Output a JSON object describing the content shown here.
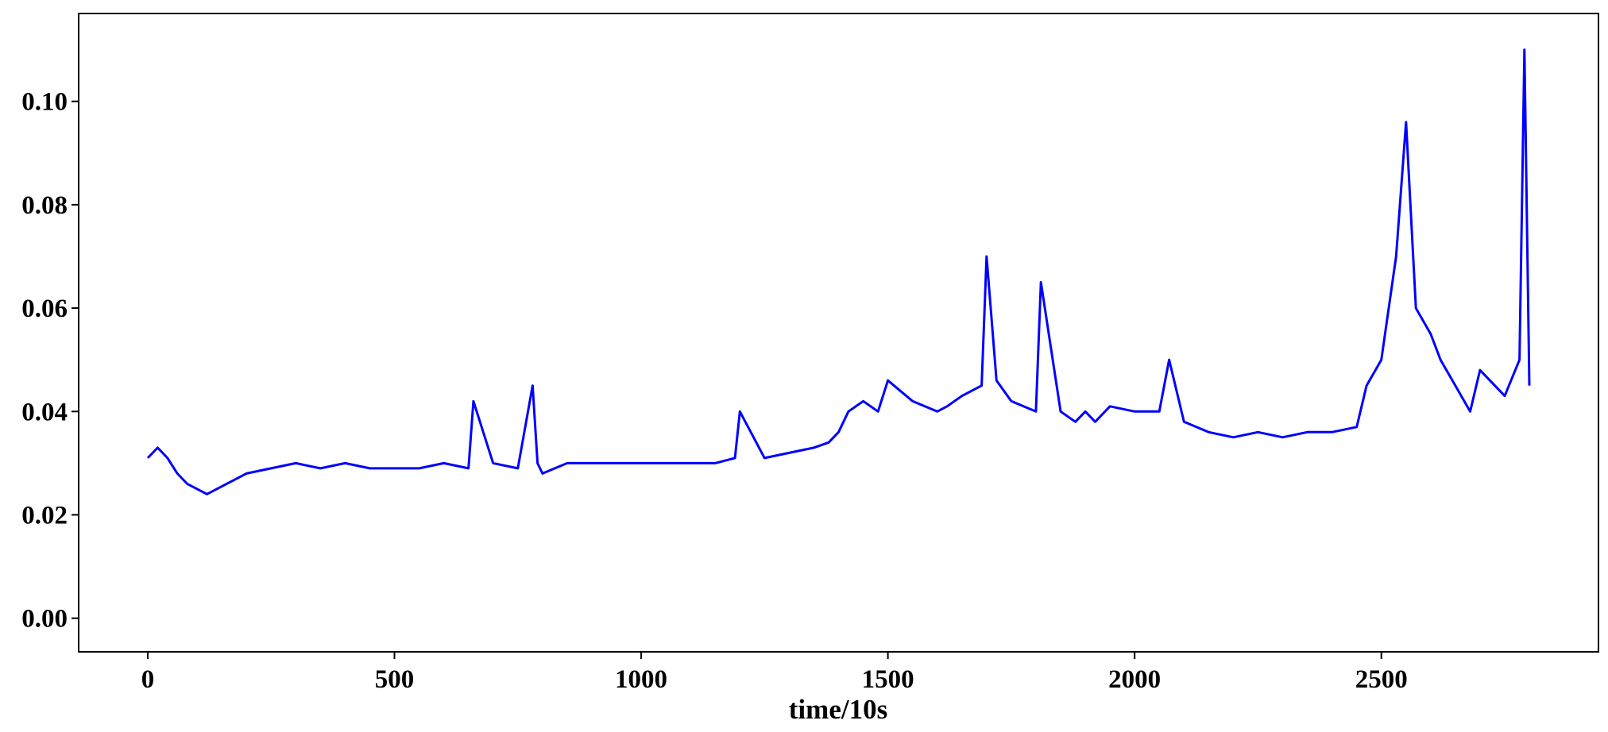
{
  "chart_data": {
    "type": "line",
    "title": "",
    "xlabel": "time/10s",
    "ylabel": "",
    "xlim": [
      -140,
      2940
    ],
    "ylim": [
      -0.0065,
      0.117
    ],
    "x_ticks": [
      0,
      500,
      1000,
      1500,
      2000,
      2500
    ],
    "x_tick_labels": [
      "0",
      "500",
      "1000",
      "1500",
      "2000",
      "2500"
    ],
    "y_ticks": [
      0.0,
      0.02,
      0.04,
      0.06,
      0.08,
      0.1
    ],
    "y_tick_labels": [
      "0.00",
      "0.02",
      "0.04",
      "0.06",
      "0.08",
      "0.10"
    ],
    "grid": false,
    "legend": "none",
    "series": [
      {
        "color": "#0000ff",
        "x": [
          0,
          20,
          40,
          60,
          80,
          100,
          120,
          140,
          160,
          180,
          200,
          250,
          300,
          350,
          400,
          450,
          500,
          550,
          600,
          650,
          660,
          700,
          750,
          780,
          790,
          800,
          850,
          900,
          950,
          1000,
          1050,
          1100,
          1150,
          1190,
          1200,
          1250,
          1300,
          1350,
          1380,
          1400,
          1420,
          1450,
          1480,
          1500,
          1550,
          1600,
          1620,
          1650,
          1690,
          1700,
          1720,
          1750,
          1800,
          1810,
          1850,
          1880,
          1900,
          1920,
          1950,
          2000,
          2050,
          2070,
          2100,
          2150,
          2200,
          2250,
          2300,
          2350,
          2400,
          2450,
          2470,
          2500,
          2530,
          2550,
          2570,
          2600,
          2620,
          2650,
          2680,
          2700,
          2730,
          2750,
          2780,
          2790,
          2800
        ],
        "y": [
          0.031,
          0.033,
          0.031,
          0.028,
          0.026,
          0.025,
          0.024,
          0.025,
          0.026,
          0.027,
          0.028,
          0.029,
          0.03,
          0.029,
          0.03,
          0.029,
          0.029,
          0.029,
          0.03,
          0.029,
          0.042,
          0.03,
          0.029,
          0.045,
          0.03,
          0.028,
          0.03,
          0.03,
          0.03,
          0.03,
          0.03,
          0.03,
          0.03,
          0.031,
          0.04,
          0.031,
          0.032,
          0.033,
          0.034,
          0.036,
          0.04,
          0.042,
          0.04,
          0.046,
          0.042,
          0.04,
          0.041,
          0.043,
          0.045,
          0.07,
          0.046,
          0.042,
          0.04,
          0.065,
          0.04,
          0.038,
          0.04,
          0.038,
          0.041,
          0.04,
          0.04,
          0.05,
          0.038,
          0.036,
          0.035,
          0.036,
          0.035,
          0.036,
          0.036,
          0.037,
          0.045,
          0.05,
          0.07,
          0.096,
          0.06,
          0.055,
          0.05,
          0.045,
          0.04,
          0.048,
          0.045,
          0.043,
          0.05,
          0.11,
          0.045
        ]
      }
    ]
  }
}
